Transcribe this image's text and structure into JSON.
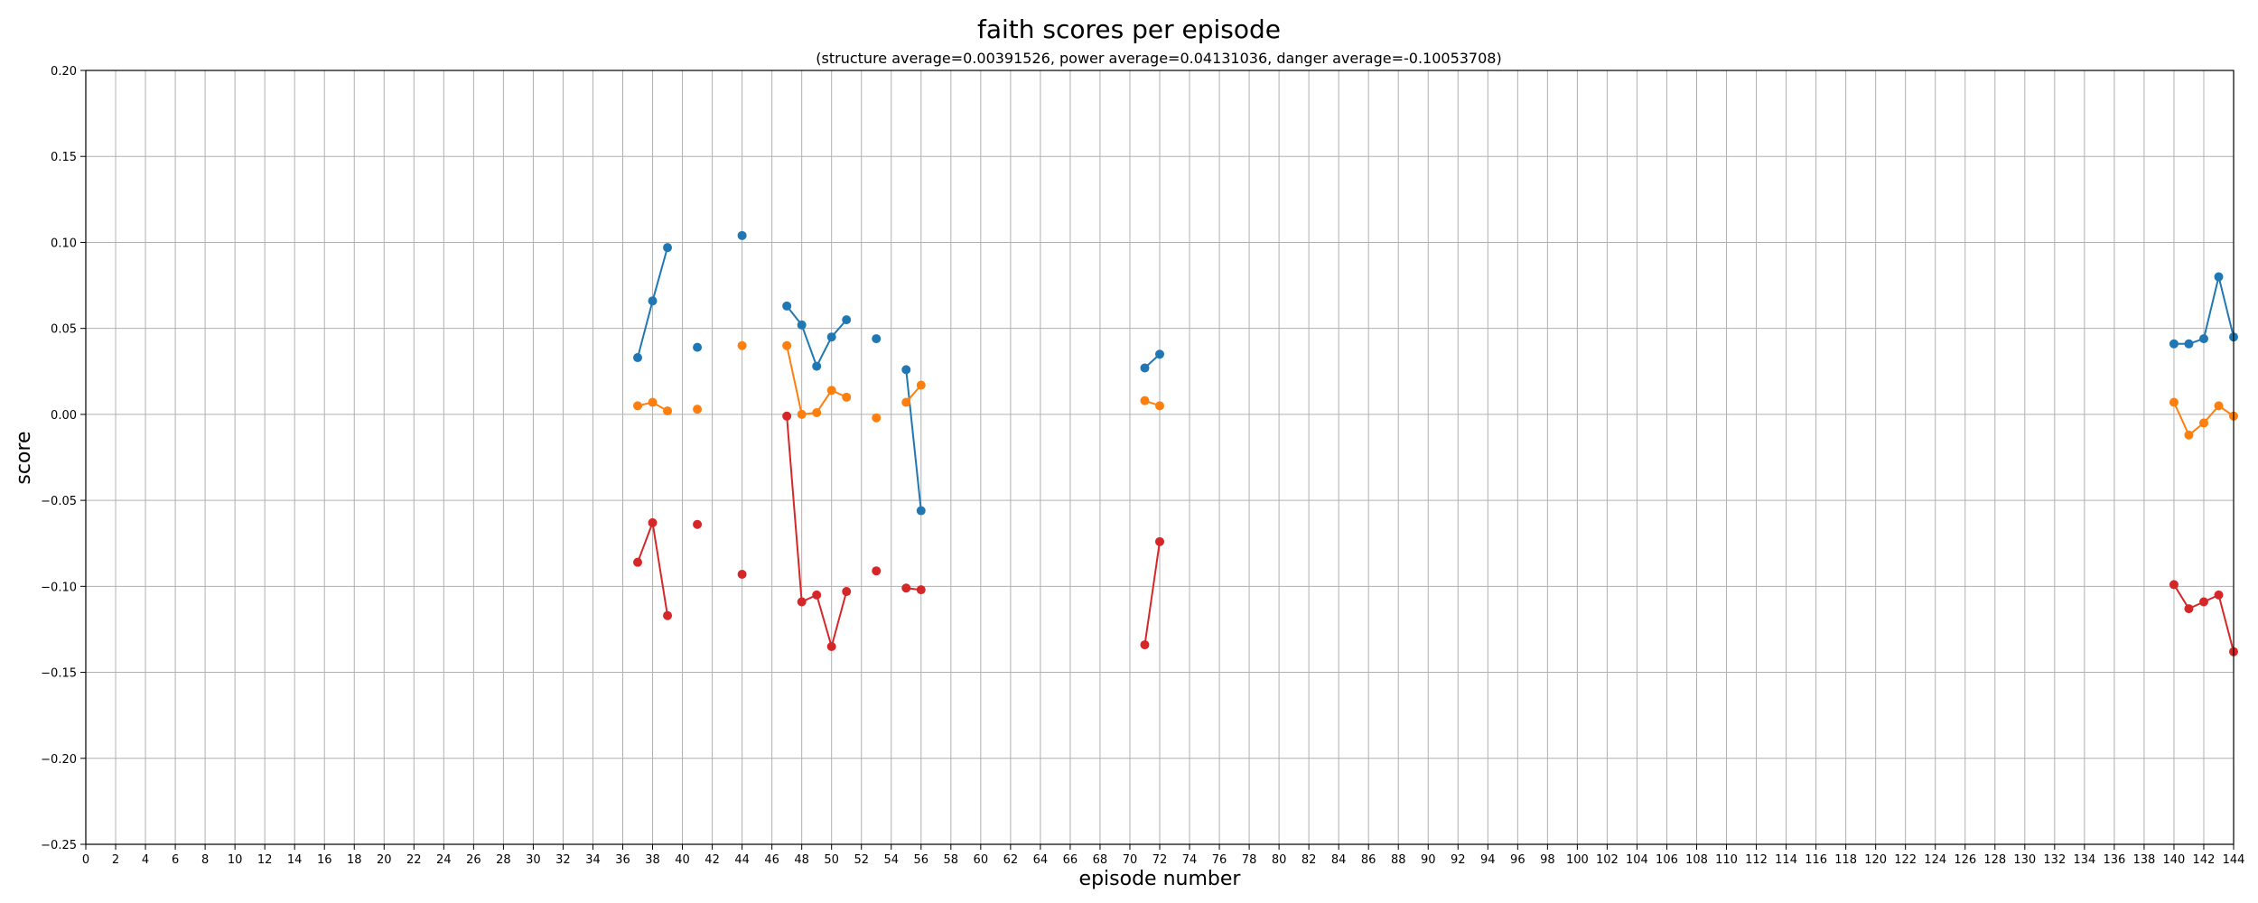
{
  "chart_data": {
    "type": "line",
    "title": "faith scores per episode",
    "subtitle": "(structure average=0.00391526, power average=0.04131036, danger average=-0.10053708)",
    "xlabel": "episode number",
    "ylabel": "score",
    "xlim": [
      0,
      144
    ],
    "ylim": [
      -0.25,
      0.2
    ],
    "x_ticks": [
      0,
      2,
      4,
      6,
      8,
      10,
      12,
      14,
      16,
      18,
      20,
      22,
      24,
      26,
      28,
      30,
      32,
      34,
      36,
      38,
      40,
      42,
      44,
      46,
      48,
      50,
      52,
      54,
      56,
      58,
      60,
      62,
      64,
      66,
      68,
      70,
      72,
      74,
      76,
      78,
      80,
      82,
      84,
      86,
      88,
      90,
      92,
      94,
      96,
      98,
      100,
      102,
      104,
      106,
      108,
      110,
      112,
      114,
      116,
      118,
      120,
      122,
      124,
      126,
      128,
      130,
      132,
      134,
      136,
      138,
      140,
      142,
      144
    ],
    "y_ticks": [
      0.2,
      0.15,
      0.1,
      0.05,
      0.0,
      -0.05,
      -0.1,
      -0.15,
      -0.2,
      -0.25
    ],
    "y_tick_labels": [
      "0.20",
      "0.15",
      "0.10",
      "0.05",
      "0.00",
      "−0.05",
      "−0.10",
      "−0.15",
      "−0.20",
      "−0.25"
    ],
    "grid": true,
    "series": [
      {
        "color": "#1f77b4",
        "points": [
          [
            37,
            0.033
          ],
          [
            38,
            0.066
          ],
          [
            39,
            0.097
          ],
          [
            41,
            0.039
          ],
          [
            44,
            0.104
          ],
          [
            47,
            0.063
          ],
          [
            48,
            0.052
          ],
          [
            49,
            0.028
          ],
          [
            50,
            0.045
          ],
          [
            51,
            0.055
          ],
          [
            53,
            0.044
          ],
          [
            55,
            0.026
          ],
          [
            56,
            -0.056
          ],
          [
            71,
            0.027
          ],
          [
            72,
            0.035
          ],
          [
            140,
            0.041
          ],
          [
            141,
            0.041
          ],
          [
            142,
            0.044
          ],
          [
            143,
            0.08
          ],
          [
            144,
            0.045
          ]
        ]
      },
      {
        "color": "#ff7f0e",
        "points": [
          [
            37,
            0.005
          ],
          [
            38,
            0.007
          ],
          [
            39,
            0.002
          ],
          [
            41,
            0.003
          ],
          [
            44,
            0.04
          ],
          [
            47,
            0.04
          ],
          [
            48,
            0.0
          ],
          [
            49,
            0.001
          ],
          [
            50,
            0.014
          ],
          [
            51,
            0.01
          ],
          [
            53,
            -0.002
          ],
          [
            55,
            0.007
          ],
          [
            56,
            0.017
          ],
          [
            71,
            0.008
          ],
          [
            72,
            0.005
          ],
          [
            140,
            0.007
          ],
          [
            141,
            -0.012
          ],
          [
            142,
            -0.005
          ],
          [
            143,
            0.005
          ],
          [
            144,
            -0.001
          ]
        ]
      },
      {
        "color": "#d62728",
        "points": [
          [
            37,
            -0.086
          ],
          [
            38,
            -0.063
          ],
          [
            39,
            -0.117
          ],
          [
            41,
            -0.064
          ],
          [
            44,
            -0.093
          ],
          [
            47,
            -0.001
          ],
          [
            48,
            -0.109
          ],
          [
            49,
            -0.105
          ],
          [
            50,
            -0.135
          ],
          [
            51,
            -0.103
          ],
          [
            53,
            -0.091
          ],
          [
            55,
            -0.101
          ],
          [
            56,
            -0.102
          ],
          [
            71,
            -0.134
          ],
          [
            72,
            -0.074
          ],
          [
            140,
            -0.099
          ],
          [
            141,
            -0.113
          ],
          [
            142,
            -0.109
          ],
          [
            143,
            -0.105
          ],
          [
            144,
            -0.138
          ]
        ]
      }
    ]
  }
}
